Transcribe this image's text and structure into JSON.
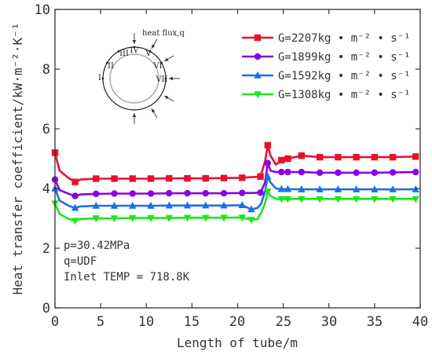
{
  "chart_data": {
    "type": "line",
    "xlabel": "Length of tube/m",
    "ylabel": "Heat transfer coefficient/kW·m⁻²·K⁻¹",
    "xlim": [
      0,
      40
    ],
    "ylim": [
      0,
      10
    ],
    "x_ticks": [
      "0",
      "5",
      "10",
      "15",
      "20",
      "25",
      "30",
      "35",
      "40"
    ],
    "y_ticks": [
      "0",
      "2",
      "4",
      "6",
      "8",
      "10"
    ],
    "grid": false,
    "legend_position": "top-right",
    "series": [
      {
        "name": "G=2207kg • m⁻² • s⁻¹",
        "color": "#e8112d",
        "marker": "square",
        "x": [
          0,
          0.5,
          1.5,
          2.2,
          2.8,
          4.5,
          6.5,
          8.5,
          10.5,
          12.5,
          14.5,
          16.5,
          18.5,
          20.5,
          21.5,
          22.5,
          23.0,
          23.3,
          23.6,
          24.2,
          24.8,
          25.5,
          27.0,
          29.0,
          31.0,
          33.0,
          35.0,
          37.0,
          39.5
        ],
        "y": [
          5.2,
          4.6,
          4.35,
          4.22,
          4.3,
          4.33,
          4.33,
          4.33,
          4.33,
          4.34,
          4.34,
          4.34,
          4.35,
          4.36,
          4.38,
          4.4,
          4.9,
          5.45,
          5.1,
          4.8,
          4.95,
          5.0,
          5.1,
          5.05,
          5.05,
          5.05,
          5.05,
          5.05,
          5.07
        ],
        "markers_x": [
          0,
          2.2,
          4.5,
          6.5,
          8.5,
          10.5,
          12.5,
          14.5,
          16.5,
          18.5,
          20.5,
          22.5,
          23.3,
          24.8,
          25.5,
          27.0,
          29.0,
          31.0,
          33.0,
          35.0,
          37.0,
          39.5
        ]
      },
      {
        "name": "G=1899kg • m⁻² • s⁻¹",
        "color": "#8b00e6",
        "marker": "circle",
        "x": [
          0,
          0.5,
          1.5,
          2.2,
          2.8,
          4.5,
          6.5,
          8.5,
          10.5,
          12.5,
          14.5,
          16.5,
          18.5,
          20.5,
          21.5,
          22.5,
          23.0,
          23.3,
          23.6,
          24.2,
          24.8,
          25.5,
          27.0,
          29.0,
          31.0,
          33.0,
          35.0,
          37.0,
          39.5
        ],
        "y": [
          4.3,
          3.95,
          3.82,
          3.75,
          3.8,
          3.82,
          3.83,
          3.83,
          3.83,
          3.84,
          3.84,
          3.84,
          3.84,
          3.85,
          3.85,
          3.86,
          4.2,
          4.85,
          4.6,
          4.55,
          4.55,
          4.55,
          4.55,
          4.53,
          4.53,
          4.53,
          4.53,
          4.54,
          4.55
        ],
        "markers_x": [
          0,
          2.2,
          4.5,
          6.5,
          8.5,
          10.5,
          12.5,
          14.5,
          16.5,
          18.5,
          20.5,
          22.5,
          23.3,
          24.8,
          25.5,
          27.0,
          29.0,
          31.0,
          33.0,
          35.0,
          37.0,
          39.5
        ]
      },
      {
        "name": "G=1592kg • m⁻² • s⁻¹",
        "color": "#1e6fe6",
        "marker": "triangle-up",
        "x": [
          0,
          0.5,
          1.5,
          2.2,
          2.8,
          4.5,
          6.5,
          8.5,
          10.5,
          12.5,
          14.5,
          16.5,
          18.5,
          20.5,
          21.5,
          22.2,
          22.6,
          23.0,
          23.3,
          23.6,
          24.2,
          24.8,
          25.5,
          27.0,
          29.0,
          31.0,
          33.0,
          35.0,
          37.0,
          39.5
        ],
        "y": [
          4.0,
          3.6,
          3.42,
          3.35,
          3.4,
          3.42,
          3.42,
          3.42,
          3.42,
          3.43,
          3.43,
          3.43,
          3.43,
          3.44,
          3.3,
          3.35,
          3.5,
          3.9,
          4.4,
          4.2,
          4.0,
          3.98,
          3.98,
          3.97,
          3.97,
          3.97,
          3.97,
          3.97,
          3.97,
          3.97
        ],
        "markers_x": [
          0,
          2.2,
          4.5,
          6.5,
          8.5,
          10.5,
          12.5,
          14.5,
          16.5,
          18.5,
          20.5,
          21.5,
          23.3,
          24.8,
          25.5,
          27.0,
          29.0,
          31.0,
          33.0,
          35.0,
          37.0,
          39.5
        ]
      },
      {
        "name": "G=1308kg • m⁻² • s⁻¹",
        "color": "#1ee61e",
        "marker": "triangle-down",
        "x": [
          0,
          0.5,
          1.5,
          2.2,
          2.8,
          4.5,
          6.5,
          8.5,
          10.5,
          12.5,
          14.5,
          16.5,
          18.5,
          20.5,
          21.5,
          22.2,
          22.6,
          23.0,
          23.3,
          23.6,
          24.2,
          24.8,
          25.5,
          27.0,
          29.0,
          31.0,
          33.0,
          35.0,
          37.0,
          39.5
        ],
        "y": [
          3.5,
          3.15,
          2.98,
          2.92,
          2.98,
          3.0,
          3.0,
          3.01,
          3.01,
          3.01,
          3.02,
          3.02,
          3.02,
          3.03,
          2.95,
          2.98,
          3.2,
          3.5,
          3.9,
          3.75,
          3.65,
          3.65,
          3.65,
          3.65,
          3.65,
          3.65,
          3.65,
          3.65,
          3.65,
          3.65
        ],
        "markers_x": [
          0,
          2.2,
          4.5,
          6.5,
          8.5,
          10.5,
          12.5,
          14.5,
          16.5,
          18.5,
          20.5,
          21.5,
          23.3,
          24.8,
          25.5,
          27.0,
          29.0,
          31.0,
          33.0,
          35.0,
          37.0,
          39.5
        ]
      }
    ],
    "annotations": [
      "p=30.42MPa",
      "q=UDF",
      "Inlet TEMP = 718.8K"
    ],
    "inset": {
      "label": "heat flux,q",
      "sectors": [
        "I",
        "II",
        "III",
        "IV",
        "V",
        "VI",
        "VII"
      ]
    }
  }
}
